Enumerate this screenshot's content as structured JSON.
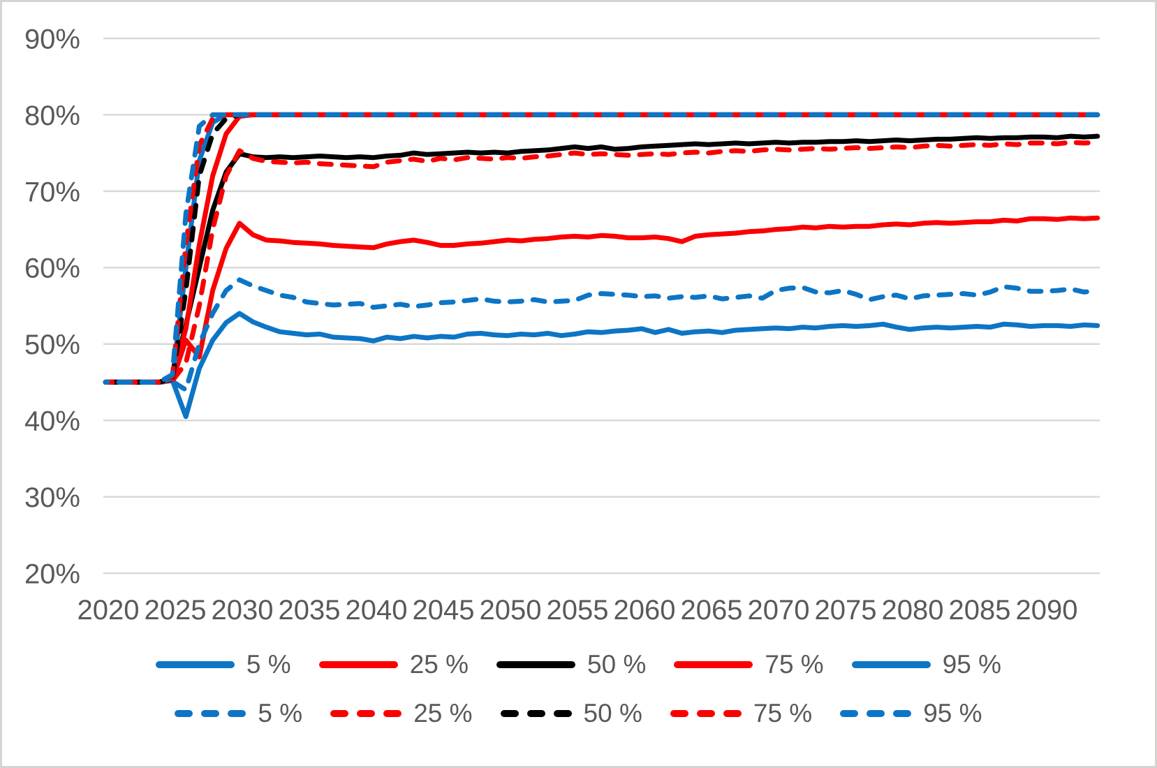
{
  "colors": {
    "blue": "#0d75c5",
    "red": "#fb0000",
    "black": "#000000",
    "axis_text": "#595959",
    "gridline": "#d9d9d9",
    "frame": "#d6d4d1",
    "background": "#ffffff"
  },
  "chart_data": {
    "type": "line",
    "title": "",
    "xlabel": "",
    "ylabel": "",
    "grid": "horizontal",
    "legend_position": "bottom",
    "ylim": [
      20,
      90
    ],
    "y_ticks": [
      {
        "label": "90%",
        "value": 90
      },
      {
        "label": "80%",
        "value": 80
      },
      {
        "label": "70%",
        "value": 70
      },
      {
        "label": "60%",
        "value": 60
      },
      {
        "label": "50%",
        "value": 50
      },
      {
        "label": "40%",
        "value": 40
      },
      {
        "label": "30%",
        "value": 30
      },
      {
        "label": "20%",
        "value": 20
      }
    ],
    "x_ticks": [
      {
        "label": "2020",
        "value": 2020
      },
      {
        "label": "2025",
        "value": 2025
      },
      {
        "label": "2030",
        "value": 2030
      },
      {
        "label": "2035",
        "value": 2035
      },
      {
        "label": "2040",
        "value": 2040
      },
      {
        "label": "2045",
        "value": 2045
      },
      {
        "label": "2050",
        "value": 2050
      },
      {
        "label": "2055",
        "value": 2055
      },
      {
        "label": "2060",
        "value": 2060
      },
      {
        "label": "2065",
        "value": 2065
      },
      {
        "label": "2070",
        "value": 2070
      },
      {
        "label": "2075",
        "value": 2075
      },
      {
        "label": "2080",
        "value": 2080
      },
      {
        "label": "2085",
        "value": 2085
      },
      {
        "label": "2090",
        "value": 2090
      }
    ],
    "x": [
      2020,
      2021,
      2022,
      2023,
      2024,
      2025,
      2026,
      2027,
      2028,
      2029,
      2030,
      2031,
      2032,
      2033,
      2034,
      2035,
      2036,
      2037,
      2038,
      2039,
      2040,
      2041,
      2042,
      2043,
      2044,
      2045,
      2046,
      2047,
      2048,
      2049,
      2050,
      2051,
      2052,
      2053,
      2054,
      2055,
      2056,
      2057,
      2058,
      2059,
      2060,
      2061,
      2062,
      2063,
      2064,
      2065,
      2066,
      2067,
      2068,
      2069,
      2070,
      2071,
      2072,
      2073,
      2074,
      2075,
      2076,
      2077,
      2078,
      2079,
      2080,
      2081,
      2082,
      2083,
      2084,
      2085,
      2086,
      2087,
      2088,
      2089,
      2090,
      2091,
      2092,
      2093,
      2094
    ],
    "series": [
      {
        "name": "5 %",
        "style": "solid",
        "color": "#0d75c5",
        "dash": false,
        "phase": 0,
        "values": [
          45,
          45,
          45,
          45,
          45,
          45.2,
          40.5,
          46.8,
          50.5,
          52.8,
          54.0,
          52.9,
          52.2,
          51.6,
          51.4,
          51.2,
          51.3,
          50.9,
          50.8,
          50.7,
          50.4,
          50.9,
          50.7,
          51.0,
          50.8,
          51.0,
          50.9,
          51.3,
          51.4,
          51.2,
          51.1,
          51.3,
          51.2,
          51.4,
          51.1,
          51.3,
          51.6,
          51.5,
          51.7,
          51.8,
          52.0,
          51.5,
          51.9,
          51.4,
          51.6,
          51.7,
          51.5,
          51.8,
          51.9,
          52.0,
          52.1,
          52.0,
          52.2,
          52.1,
          52.3,
          52.4,
          52.3,
          52.4,
          52.6,
          52.2,
          51.9,
          52.1,
          52.2,
          52.1,
          52.2,
          52.3,
          52.2,
          52.6,
          52.5,
          52.3,
          52.4,
          52.4,
          52.3,
          52.5,
          52.4
        ]
      },
      {
        "name": "25 %",
        "style": "solid",
        "color": "#fb0000",
        "dash": false,
        "phase": 0,
        "values": [
          45,
          45,
          45,
          45,
          45,
          45.3,
          50.5,
          48.3,
          57.0,
          62.5,
          65.8,
          64.3,
          63.6,
          63.5,
          63.3,
          63.2,
          63.1,
          62.9,
          62.8,
          62.7,
          62.6,
          63.1,
          63.4,
          63.6,
          63.3,
          62.9,
          62.9,
          63.1,
          63.2,
          63.4,
          63.6,
          63.5,
          63.7,
          63.8,
          64.0,
          64.1,
          64.0,
          64.2,
          64.1,
          63.9,
          63.9,
          64.0,
          63.8,
          63.4,
          64.1,
          64.3,
          64.4,
          64.5,
          64.7,
          64.8,
          65.0,
          65.1,
          65.3,
          65.2,
          65.4,
          65.3,
          65.4,
          65.4,
          65.6,
          65.7,
          65.6,
          65.8,
          65.9,
          65.8,
          65.9,
          66.0,
          66.0,
          66.2,
          66.1,
          66.4,
          66.4,
          66.3,
          66.5,
          66.4,
          66.5
        ]
      },
      {
        "name": "50 %",
        "style": "solid",
        "color": "#000000",
        "dash": false,
        "phase": 0,
        "values": [
          45,
          45,
          45,
          45,
          45,
          45.4,
          52.5,
          60.0,
          67.5,
          72.5,
          74.9,
          74.5,
          74.4,
          74.5,
          74.4,
          74.5,
          74.6,
          74.5,
          74.4,
          74.5,
          74.4,
          74.6,
          74.7,
          75.0,
          74.8,
          74.9,
          75.0,
          75.1,
          75.0,
          75.1,
          75.0,
          75.2,
          75.3,
          75.4,
          75.6,
          75.8,
          75.6,
          75.8,
          75.5,
          75.6,
          75.8,
          75.9,
          76.0,
          76.1,
          76.2,
          76.1,
          76.2,
          76.3,
          76.2,
          76.3,
          76.4,
          76.3,
          76.4,
          76.4,
          76.5,
          76.5,
          76.6,
          76.5,
          76.6,
          76.7,
          76.6,
          76.7,
          76.8,
          76.8,
          76.9,
          77.0,
          76.9,
          77.0,
          77.0,
          77.1,
          77.1,
          77.0,
          77.2,
          77.1,
          77.2
        ]
      },
      {
        "name": "75 %",
        "style": "solid",
        "color": "#fb0000",
        "dash": false,
        "phase": 0,
        "values": [
          45,
          45,
          45,
          45,
          45,
          45.5,
          52.0,
          63.0,
          72.0,
          77.5,
          79.8,
          80,
          80,
          80,
          80,
          80,
          80,
          80,
          80,
          80,
          80,
          80,
          80,
          80,
          80,
          80,
          80,
          80,
          80,
          80,
          80,
          80,
          80,
          80,
          80,
          80,
          80,
          80,
          80,
          80,
          80,
          80,
          80,
          80,
          80,
          80,
          80,
          80,
          80,
          80,
          80,
          80,
          80,
          80,
          80,
          80,
          80,
          80,
          80,
          80,
          80,
          80,
          80,
          80,
          80,
          80,
          80,
          80,
          80,
          80,
          80,
          80,
          80,
          80,
          80
        ]
      },
      {
        "name": "95 %",
        "style": "solid",
        "color": "#0d75c5",
        "dash": false,
        "phase": 0,
        "values": [
          45,
          45,
          45,
          45,
          45,
          45.5,
          60.0,
          74.0,
          79.0,
          80,
          80,
          80,
          80,
          80,
          80,
          80,
          80,
          80,
          80,
          80,
          80,
          80,
          80,
          80,
          80,
          80,
          80,
          80,
          80,
          80,
          80,
          80,
          80,
          80,
          80,
          80,
          80,
          80,
          80,
          80,
          80,
          80,
          80,
          80,
          80,
          80,
          80,
          80,
          80,
          80,
          80,
          80,
          80,
          80,
          80,
          80,
          80,
          80,
          80,
          80,
          80,
          80,
          80,
          80,
          80,
          80,
          80,
          80,
          80,
          80,
          80,
          80,
          80,
          80,
          80
        ]
      },
      {
        "name": "5 %",
        "style": "dashed",
        "color": "#0d75c5",
        "dash": true,
        "phase": 0,
        "values": [
          45,
          45,
          45,
          45,
          45,
          45.1,
          44.0,
          50.0,
          54.0,
          57.0,
          58.4,
          57.6,
          57.0,
          56.4,
          56.1,
          55.5,
          55.3,
          55.1,
          55.2,
          55.3,
          54.8,
          55.0,
          55.2,
          54.9,
          55.1,
          55.4,
          55.5,
          55.7,
          55.9,
          55.6,
          55.5,
          55.6,
          55.8,
          55.5,
          55.6,
          55.7,
          56.4,
          56.6,
          56.5,
          56.4,
          56.2,
          56.3,
          56.0,
          56.2,
          56.1,
          56.3,
          55.9,
          56.1,
          56.3,
          56.0,
          57.0,
          57.3,
          57.4,
          56.8,
          56.7,
          57.0,
          56.5,
          55.8,
          56.2,
          56.4,
          55.9,
          56.3,
          56.4,
          56.5,
          56.6,
          56.4,
          56.8,
          57.5,
          57.3,
          56.9,
          56.9,
          57.0,
          57.2,
          56.8,
          57.0
        ]
      },
      {
        "name": "25 %",
        "style": "dashed",
        "color": "#fb0000",
        "dash": true,
        "phase": 0,
        "values": [
          45,
          45,
          45,
          45,
          45,
          45.2,
          47.5,
          55.0,
          65.0,
          72.0,
          75.3,
          74.3,
          73.9,
          73.8,
          73.7,
          73.8,
          73.6,
          73.5,
          73.4,
          73.3,
          73.2,
          73.8,
          74.0,
          74.2,
          73.9,
          74.3,
          74.1,
          74.4,
          74.3,
          74.2,
          74.4,
          74.3,
          74.5,
          74.6,
          74.8,
          75.0,
          74.8,
          74.9,
          74.8,
          74.7,
          74.8,
          74.9,
          74.8,
          75.0,
          75.1,
          75.0,
          75.2,
          75.3,
          75.2,
          75.4,
          75.5,
          75.4,
          75.5,
          75.6,
          75.5,
          75.6,
          75.7,
          75.6,
          75.7,
          75.8,
          75.7,
          75.9,
          76.0,
          75.9,
          76.0,
          76.1,
          76.0,
          76.2,
          76.1,
          76.3,
          76.3,
          76.2,
          76.4,
          76.3,
          76.4
        ]
      },
      {
        "name": "50 %",
        "style": "dashed",
        "color": "#000000",
        "dash": true,
        "phase": 0,
        "values": [
          45,
          45,
          45,
          45,
          45,
          45.5,
          57.0,
          72.0,
          77.5,
          79.5,
          80,
          80,
          80,
          80,
          80,
          80,
          80,
          80,
          80,
          80,
          80,
          80,
          80,
          80,
          80,
          80,
          80,
          80,
          80,
          80,
          80,
          80,
          80,
          80,
          80,
          80,
          80,
          80,
          80,
          80,
          80,
          80,
          80,
          80,
          80,
          80,
          80,
          80,
          80,
          80,
          80,
          80,
          80,
          80,
          80,
          80,
          80,
          80,
          80,
          80,
          80,
          80,
          80,
          80,
          80,
          80,
          80,
          80,
          80,
          80,
          80,
          80,
          80,
          80,
          80
        ]
      },
      {
        "name": "75 %",
        "style": "dashed",
        "color": "#fb0000",
        "dash": true,
        "phase": 7,
        "values": [
          45,
          45,
          45,
          45,
          45,
          45.8,
          63.0,
          76.0,
          79.5,
          80,
          80,
          80,
          80,
          80,
          80,
          80,
          80,
          80,
          80,
          80,
          80,
          80,
          80,
          80,
          80,
          80,
          80,
          80,
          80,
          80,
          80,
          80,
          80,
          80,
          80,
          80,
          80,
          80,
          80,
          80,
          80,
          80,
          80,
          80,
          80,
          80,
          80,
          80,
          80,
          80,
          80,
          80,
          80,
          80,
          80,
          80,
          80,
          80,
          80,
          80,
          80,
          80,
          80,
          80,
          80,
          80,
          80,
          80,
          80,
          80,
          80,
          80,
          80,
          80,
          80
        ]
      },
      {
        "name": "95 %",
        "style": "dashed",
        "color": "#0d75c5",
        "dash": true,
        "phase": 14,
        "values": [
          45,
          45,
          45,
          45,
          45,
          46.0,
          67.0,
          78.5,
          80,
          80,
          80,
          80,
          80,
          80,
          80,
          80,
          80,
          80,
          80,
          80,
          80,
          80,
          80,
          80,
          80,
          80,
          80,
          80,
          80,
          80,
          80,
          80,
          80,
          80,
          80,
          80,
          80,
          80,
          80,
          80,
          80,
          80,
          80,
          80,
          80,
          80,
          80,
          80,
          80,
          80,
          80,
          80,
          80,
          80,
          80,
          80,
          80,
          80,
          80,
          80,
          80,
          80,
          80,
          80,
          80,
          80,
          80,
          80,
          80,
          80,
          80,
          80,
          80,
          80,
          80
        ]
      }
    ],
    "legend_rows": [
      {
        "name": "solid",
        "items": [
          {
            "label": "5 %",
            "color": "#0d75c5"
          },
          {
            "label": "25 %",
            "color": "#fb0000"
          },
          {
            "label": "50 %",
            "color": "#000000"
          },
          {
            "label": "75 %",
            "color": "#fb0000"
          },
          {
            "label": "95 %",
            "color": "#0d75c5"
          }
        ]
      },
      {
        "name": "dashed",
        "items": [
          {
            "label": "5 %",
            "color": "#0d75c5"
          },
          {
            "label": "25 %",
            "color": "#fb0000"
          },
          {
            "label": "50 %",
            "color": "#000000"
          },
          {
            "label": "75 %",
            "color": "#fb0000"
          },
          {
            "label": "95 %",
            "color": "#0d75c5"
          }
        ]
      }
    ]
  }
}
